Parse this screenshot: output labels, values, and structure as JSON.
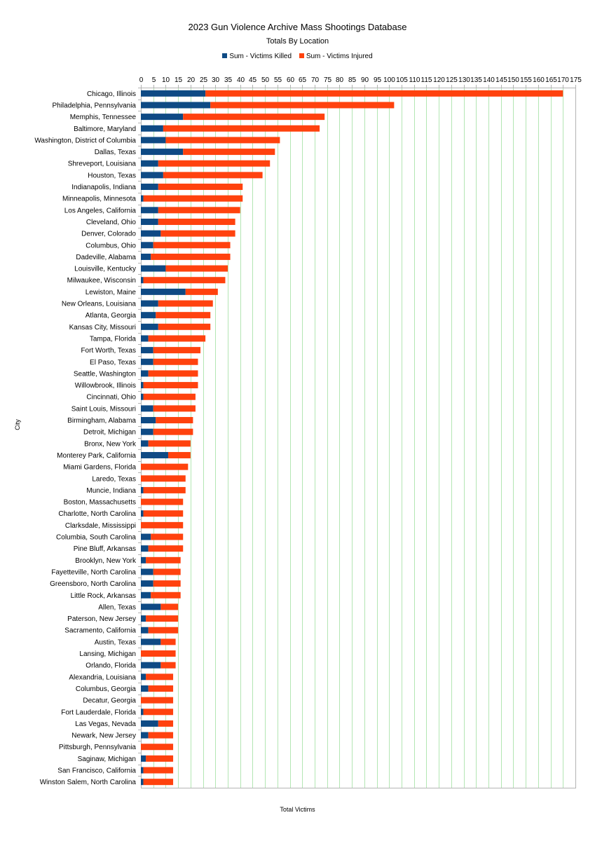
{
  "chart_data": {
    "type": "bar",
    "orientation": "horizontal",
    "stacked": true,
    "title": "2023 Gun Violence Archive Mass Shootings Database",
    "subtitle": "Totals By Location",
    "xlabel": "Total Victims",
    "ylabel": "City",
    "xlim": [
      0,
      175
    ],
    "xtick_step": 5,
    "grid": "vertical",
    "legend_position": "top",
    "colors": {
      "killed": "#0e4a84",
      "injured": "#ff420e",
      "grid": "#b3e6b3",
      "axis": "#b3b3b3"
    },
    "categories": [
      "Chicago, Illinois",
      "Philadelphia, Pennsylvania",
      "Memphis, Tennessee",
      "Baltimore, Maryland",
      "Washington, District of Columbia",
      "Dallas, Texas",
      "Shreveport, Louisiana",
      "Houston, Texas",
      "Indianapolis, Indiana",
      "Minneapolis, Minnesota",
      "Los Angeles, California",
      "Cleveland, Ohio",
      "Denver, Colorado",
      "Columbus, Ohio",
      "Dadeville, Alabama",
      "Louisville, Kentucky",
      "Milwaukee, Wisconsin",
      "Lewiston, Maine",
      "New Orleans, Louisiana",
      "Atlanta, Georgia",
      "Kansas City, Missouri",
      "Tampa, Florida",
      "Fort Worth, Texas",
      "El Paso, Texas",
      "Seattle, Washington",
      "Willowbrook, Illinois",
      "Cincinnati, Ohio",
      "Saint Louis, Missouri",
      "Birmingham, Alabama",
      "Detroit, Michigan",
      "Bronx, New York",
      "Monterey Park, California",
      "Miami Gardens, Florida",
      "Laredo, Texas",
      "Muncie, Indiana",
      "Boston, Massachusetts",
      "Charlotte, North Carolina",
      "Clarksdale, Mississippi",
      "Columbia, South Carolina",
      "Pine Bluff, Arkansas",
      "Brooklyn, New York",
      "Fayetteville, North Carolina",
      "Greensboro, North Carolina",
      "Little Rock, Arkansas",
      "Allen, Texas",
      "Paterson, New Jersey",
      "Sacramento, California",
      "Austin, Texas",
      "Lansing, Michigan",
      "Orlando, Florida",
      "Alexandria, Louisiana",
      "Columbus, Georgia",
      "Decatur, Georgia",
      "Fort Lauderdale, Florida",
      "Las Vegas, Nevada",
      "Newark, New Jersey",
      "Pittsburgh, Pennsylvania",
      "Saginaw, Michigan",
      "San Francisco, California",
      "Winston Salem, North Carolina"
    ],
    "series": [
      {
        "name": "Sum - Victims Killed",
        "values": [
          26,
          28,
          17,
          9,
          10,
          17,
          7,
          9,
          7,
          1,
          7,
          7,
          8,
          5,
          4,
          10,
          1,
          18,
          7,
          6,
          7,
          3,
          5,
          5,
          3,
          1,
          1,
          5,
          6,
          5,
          3,
          11,
          0,
          0,
          1,
          0,
          1,
          0,
          4,
          3,
          2,
          5,
          5,
          4,
          8,
          2,
          3,
          8,
          0,
          8,
          2,
          3,
          0,
          1,
          7,
          3,
          0,
          2,
          1,
          1
        ]
      },
      {
        "name": "Sum - Victims Injured",
        "values": [
          144,
          74,
          57,
          63,
          46,
          37,
          45,
          40,
          34,
          40,
          33,
          31,
          30,
          31,
          32,
          25,
          33,
          13,
          22,
          22,
          21,
          23,
          19,
          18,
          20,
          22,
          21,
          17,
          15,
          16,
          17,
          9,
          19,
          18,
          17,
          17,
          16,
          17,
          13,
          14,
          14,
          11,
          11,
          12,
          7,
          13,
          12,
          6,
          14,
          6,
          11,
          10,
          13,
          12,
          6,
          10,
          13,
          11,
          12,
          12
        ]
      }
    ]
  }
}
